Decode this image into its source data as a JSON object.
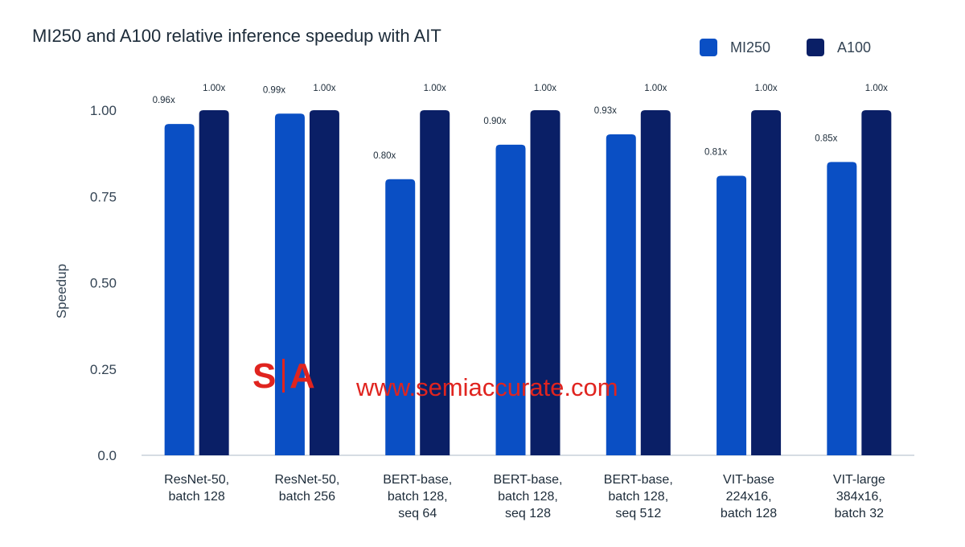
{
  "chart_data": {
    "type": "bar",
    "title": "MI250 and A100 relative inference speedup with AIT",
    "ylabel": "Speedup",
    "xlabel": "",
    "ylim": [
      0,
      1.0
    ],
    "yticks": [
      "0.0",
      "0.25",
      "0.50",
      "0.75",
      "1.00"
    ],
    "ytick_values": [
      0,
      0.25,
      0.5,
      0.75,
      1.0
    ],
    "grid": false,
    "legend_position": "top-right",
    "categories": [
      [
        "ResNet-50,",
        "batch 128"
      ],
      [
        "ResNet-50,",
        "batch 256"
      ],
      [
        "BERT-base,",
        "batch 128,",
        "seq 64"
      ],
      [
        "BERT-base,",
        "batch 128,",
        "seq 128"
      ],
      [
        "BERT-base,",
        "batch 128,",
        "seq 512"
      ],
      [
        "VIT-base",
        "224x16,",
        "batch 128"
      ],
      [
        "VIT-large",
        "384x16,",
        "batch 32"
      ]
    ],
    "series": [
      {
        "name": "MI250",
        "color": "#0a4fc4",
        "values": [
          0.96,
          0.99,
          0.8,
          0.9,
          0.93,
          0.81,
          0.85
        ],
        "labels": [
          "0.96x",
          "0.99x",
          "0.80x",
          "0.90x",
          "0.93x",
          "0.81x",
          "0.85x"
        ]
      },
      {
        "name": "A100",
        "color": "#0a1f66",
        "values": [
          1.0,
          1.0,
          1.0,
          1.0,
          1.0,
          1.0,
          1.0
        ],
        "labels": [
          "1.00x",
          "1.00x",
          "1.00x",
          "1.00x",
          "1.00x",
          "1.00x",
          "1.00x"
        ]
      }
    ]
  },
  "watermark": {
    "logo_left": "S",
    "logo_right": "A",
    "url": "www.semiaccurate.com",
    "color": "#e0241f"
  }
}
